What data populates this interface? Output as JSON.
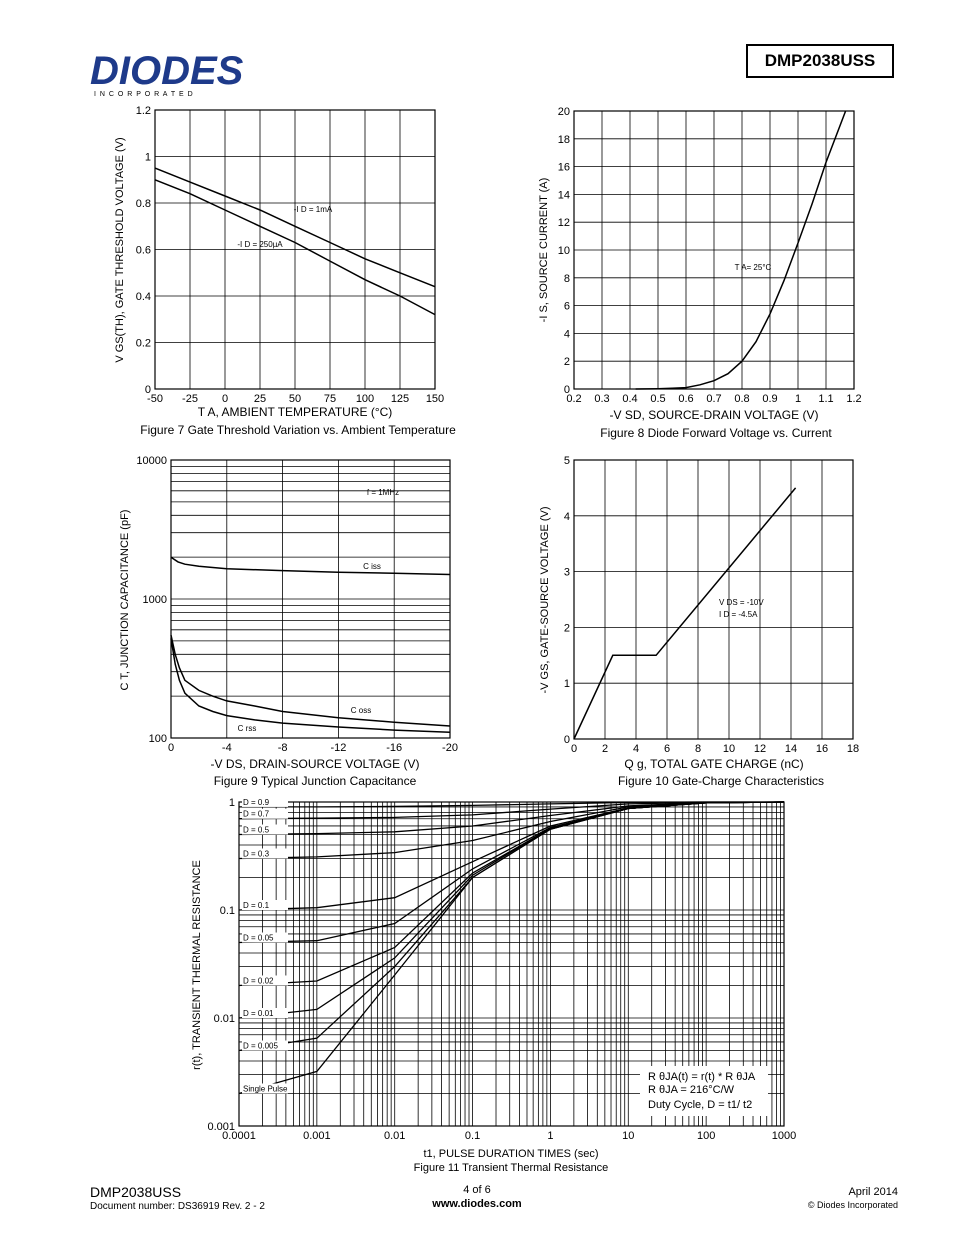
{
  "header": {
    "brand": "DIODES",
    "brand_sub": "I N C O R P O R A T E D",
    "part_number": "DMP2038USS"
  },
  "fig7": {
    "caption": "Figure 7 Gate Threshold Variation vs. Ambient Temperature",
    "ylabel": "V GS(TH), GATE THRESHOLD VOLTAGE (V)",
    "xlabel": "T A, AMBIENT TEMPERATURE (°C)",
    "label_1ma": "-I D = 1mA",
    "label_250ua": "-I D = 250µA",
    "xticks": [
      "-50",
      "-25",
      "0",
      "25",
      "50",
      "75",
      "100",
      "125",
      "150"
    ],
    "yticks": [
      "0",
      "0.2",
      "0.4",
      "0.6",
      "0.8",
      "1",
      "1.2"
    ]
  },
  "fig8": {
    "caption": "Figure 8 Diode Forward Voltage vs. Current",
    "ylabel": "-I S, SOURCE CURRENT (A)",
    "xlabel": "-V SD, SOURCE-DRAIN VOLTAGE (V)",
    "annotation": "T A= 25°C",
    "xticks": [
      "0.2",
      "0.3",
      "0.4",
      "0.5",
      "0.6",
      "0.7",
      "0.8",
      "0.9",
      "1",
      "1.1",
      "1.2"
    ],
    "yticks": [
      "0",
      "2",
      "4",
      "6",
      "8",
      "10",
      "12",
      "14",
      "16",
      "18",
      "20"
    ]
  },
  "fig9": {
    "caption": "Figure 9 Typical Junction Capacitance",
    "ylabel": "C T, JUNCTION CAPACITANCE (pF)",
    "xlabel": "-V DS, DRAIN-SOURCE VOLTAGE (V)",
    "freq": "f = 1MHz",
    "ciss": "C iss",
    "coss": "C oss",
    "crss": "C rss",
    "xticks": [
      "0",
      "-4",
      "-8",
      "-12",
      "-16",
      "-20"
    ],
    "yticks": [
      "100",
      "1000",
      "10000"
    ]
  },
  "fig10": {
    "caption": "Figure 10 Gate-Charge Characteristics",
    "ylabel": "-V GS, GATE-SOURCE VOLTAGE (V)",
    "xlabel": "Q g, TOTAL GATE CHARGE (nC)",
    "vds": "V DS = -10V",
    "id": "I D = -4.5A",
    "xticks": [
      "0",
      "2",
      "4",
      "6",
      "8",
      "10",
      "12",
      "14",
      "16",
      "18"
    ],
    "yticks": [
      "0",
      "1",
      "2",
      "3",
      "4",
      "5"
    ]
  },
  "fig11": {
    "caption": "Figure 11 Transient Thermal Resistance",
    "ylabel": "r(t), TRANSIENT THERMAL RESISTANCE",
    "xlabel": "t1, PULSE DURATION TIMES (sec)",
    "xticks": [
      "0.0001",
      "0.001",
      "0.01",
      "0.1",
      "1",
      "10",
      "100",
      "1000"
    ],
    "yticks": [
      "0.001",
      "0.01",
      "0.1",
      "1"
    ],
    "curve_labels": [
      "D = 0.9",
      "D = 0.7",
      "D = 0.5",
      "D = 0.3",
      "D = 0.1",
      "D = 0.05",
      "D = 0.02",
      "D = 0.01",
      "D = 0.005",
      "Single Pulse"
    ],
    "legend_line1": "R θJA(t) = r(t) * R θJA",
    "legend_line2": "R θJA = 216°C/W",
    "legend_line3": "Duty Cycle, D = t1/ t2"
  },
  "footer": {
    "part": "DMP2038USS",
    "doc": "Document number: DS36919 Rev. 2 - 2",
    "page": "4 of 6",
    "url": "www.diodes.com",
    "date": "April 2014",
    "copyright": "© Diodes Incorporated"
  },
  "chart_data": [
    {
      "type": "line",
      "title": "Figure 7 Gate Threshold Variation vs. Ambient Temperature",
      "xlabel": "T A, AMBIENT TEMPERATURE (°C)",
      "ylabel": "V GS(TH), GATE THRESHOLD VOLTAGE (V)",
      "xlim": [
        -50,
        150
      ],
      "ylim": [
        0,
        1.2
      ],
      "grid": true,
      "series": [
        {
          "name": "-I D = 1mA",
          "x": [
            -50,
            -25,
            0,
            25,
            50,
            75,
            100,
            125,
            150
          ],
          "values": [
            0.95,
            0.89,
            0.83,
            0.77,
            0.7,
            0.63,
            0.56,
            0.5,
            0.44
          ]
        },
        {
          "name": "-I D = 250µA",
          "x": [
            -50,
            -25,
            0,
            25,
            50,
            75,
            100,
            125,
            150
          ],
          "values": [
            0.9,
            0.84,
            0.77,
            0.7,
            0.63,
            0.55,
            0.47,
            0.4,
            0.32
          ]
        }
      ]
    },
    {
      "type": "line",
      "title": "Figure 8 Diode Forward Voltage vs. Current",
      "xlabel": "-V SD, SOURCE-DRAIN VOLTAGE (V)",
      "ylabel": "-I S, SOURCE CURRENT (A)",
      "xlim": [
        0.2,
        1.2
      ],
      "ylim": [
        0,
        20
      ],
      "grid": true,
      "series": [
        {
          "name": "T A= 25°C",
          "x": [
            0.42,
            0.5,
            0.55,
            0.6,
            0.65,
            0.7,
            0.75,
            0.8,
            0.85,
            0.9,
            0.95,
            1.0,
            1.05,
            1.1,
            1.17
          ],
          "values": [
            0,
            0.02,
            0.05,
            0.1,
            0.3,
            0.6,
            1.1,
            2.0,
            3.4,
            5.4,
            7.8,
            10.5,
            13.3,
            16.3,
            20
          ]
        }
      ]
    },
    {
      "type": "line",
      "title": "Figure 9 Typical Junction Capacitance",
      "xlabel": "-V DS, DRAIN-SOURCE VOLTAGE (V)",
      "ylabel": "C T, JUNCTION CAPACITANCE (pF)",
      "xlim": [
        0,
        -20
      ],
      "ylim": [
        100,
        10000
      ],
      "yscale": "log",
      "grid": true,
      "series": [
        {
          "name": "C iss",
          "x": [
            0,
            -0.5,
            -1,
            -2,
            -4,
            -8,
            -12,
            -16,
            -20
          ],
          "values": [
            2000,
            1850,
            1780,
            1720,
            1650,
            1600,
            1560,
            1530,
            1500
          ]
        },
        {
          "name": "C oss",
          "x": [
            0,
            -0.3,
            -0.6,
            -1,
            -2,
            -3,
            -4,
            -6,
            -8,
            -12,
            -16,
            -20
          ],
          "values": [
            550,
            400,
            320,
            260,
            220,
            200,
            185,
            170,
            155,
            140,
            130,
            122
          ]
        },
        {
          "name": "C rss",
          "x": [
            0,
            -0.3,
            -0.6,
            -1,
            -2,
            -3,
            -4,
            -6,
            -8,
            -12,
            -16,
            -20
          ],
          "values": [
            520,
            340,
            260,
            210,
            170,
            155,
            145,
            135,
            128,
            120,
            114,
            110
          ]
        }
      ]
    },
    {
      "type": "line",
      "title": "Figure 10 Gate-Charge Characteristics",
      "xlabel": "Q g, TOTAL GATE CHARGE (nC)",
      "ylabel": "-V GS, GATE-SOURCE VOLTAGE (V)",
      "xlim": [
        0,
        18
      ],
      "ylim": [
        0,
        5
      ],
      "grid": true,
      "series": [
        {
          "name": "V DS = -10V, I D = -4.5A",
          "x": [
            0,
            2.5,
            5.3,
            14.3
          ],
          "values": [
            0,
            1.5,
            1.5,
            4.5
          ]
        }
      ]
    },
    {
      "type": "line",
      "title": "Figure 11 Transient Thermal Resistance",
      "xlabel": "t1, PULSE DURATION TIMES (sec)",
      "ylabel": "r(t), TRANSIENT THERMAL RESISTANCE",
      "xlim": [
        0.0001,
        1000
      ],
      "ylim": [
        0.001,
        1
      ],
      "xscale": "log",
      "yscale": "log",
      "grid": true,
      "series": [
        {
          "name": "D = 0.9",
          "x": [
            0.0001,
            0.001,
            0.01,
            0.1,
            1,
            10,
            100,
            1000
          ],
          "values": [
            0.9,
            0.9,
            0.91,
            0.93,
            0.96,
            0.99,
            1.0,
            1.0
          ]
        },
        {
          "name": "D = 0.7",
          "x": [
            0.0001,
            0.001,
            0.01,
            0.1,
            1,
            10,
            100,
            1000
          ],
          "values": [
            0.7,
            0.71,
            0.72,
            0.76,
            0.86,
            0.96,
            0.99,
            1.0
          ]
        },
        {
          "name": "D = 0.5",
          "x": [
            0.0001,
            0.001,
            0.01,
            0.1,
            1,
            10,
            100,
            1000
          ],
          "values": [
            0.5,
            0.51,
            0.53,
            0.6,
            0.75,
            0.92,
            0.99,
            1.0
          ]
        },
        {
          "name": "D = 0.3",
          "x": [
            0.0001,
            0.001,
            0.01,
            0.1,
            1,
            10,
            100,
            1000
          ],
          "values": [
            0.3,
            0.31,
            0.34,
            0.44,
            0.66,
            0.9,
            0.99,
            1.0
          ]
        },
        {
          "name": "D = 0.1",
          "x": [
            0.0001,
            0.001,
            0.01,
            0.1,
            1,
            10,
            100,
            1000
          ],
          "values": [
            0.1,
            0.105,
            0.13,
            0.28,
            0.6,
            0.88,
            0.98,
            1.0
          ]
        },
        {
          "name": "D = 0.05",
          "x": [
            0.0001,
            0.001,
            0.01,
            0.1,
            1,
            10,
            100,
            1000
          ],
          "values": [
            0.05,
            0.052,
            0.075,
            0.24,
            0.58,
            0.87,
            0.98,
            1.0
          ]
        },
        {
          "name": "D = 0.02",
          "x": [
            0.0001,
            0.001,
            0.01,
            0.1,
            1,
            10,
            100,
            1000
          ],
          "values": [
            0.02,
            0.022,
            0.045,
            0.22,
            0.57,
            0.87,
            0.98,
            1.0
          ]
        },
        {
          "name": "D = 0.01",
          "x": [
            0.0001,
            0.001,
            0.01,
            0.1,
            1,
            10,
            100,
            1000
          ],
          "values": [
            0.01,
            0.012,
            0.036,
            0.21,
            0.57,
            0.87,
            0.98,
            1.0
          ]
        },
        {
          "name": "D = 0.005",
          "x": [
            0.0001,
            0.001,
            0.01,
            0.1,
            1,
            10,
            100,
            1000
          ],
          "values": [
            0.005,
            0.0065,
            0.03,
            0.2,
            0.56,
            0.87,
            0.98,
            1.0
          ]
        },
        {
          "name": "Single Pulse",
          "x": [
            0.0001,
            0.001,
            0.01,
            0.1,
            1,
            10,
            100,
            1000
          ],
          "values": [
            0.002,
            0.0032,
            0.025,
            0.2,
            0.56,
            0.87,
            0.98,
            1.0
          ]
        }
      ]
    }
  ]
}
